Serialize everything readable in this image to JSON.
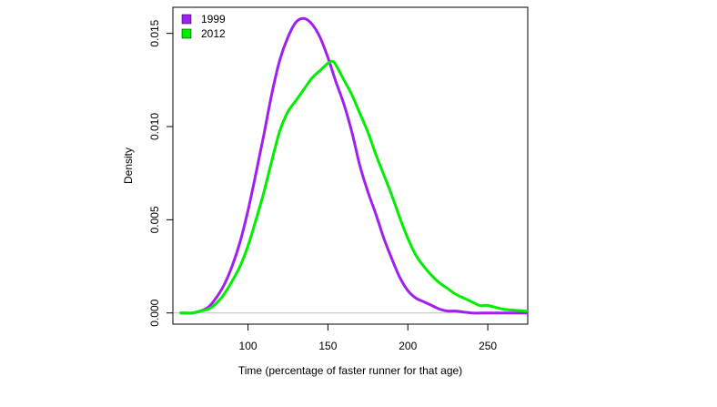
{
  "chart_data": {
    "type": "line",
    "title": "",
    "xlabel": "Time (percentage of faster runner for that age)",
    "ylabel": "Density",
    "xlim": [
      53,
      275
    ],
    "ylim": [
      -0.0006,
      0.0164
    ],
    "x_ticks": [
      100,
      150,
      200,
      250
    ],
    "x_tick_labels": [
      "100",
      "150",
      "200",
      "250"
    ],
    "y_ticks": [
      0,
      0.005,
      0.01,
      0.015
    ],
    "y_tick_labels": [
      "0.000",
      "0.005",
      "0.010",
      "0.015"
    ],
    "grid": false,
    "legend_position": "top-left",
    "baseline": 0,
    "series": [
      {
        "name": "1999",
        "color": "#A020F0",
        "x": [
          58,
          65,
          70,
          75,
          80,
          85,
          90,
          95,
          100,
          105,
          110,
          115,
          120,
          125,
          130,
          135,
          140,
          145,
          150,
          155,
          160,
          165,
          170,
          175,
          180,
          185,
          190,
          195,
          200,
          205,
          210,
          215,
          220,
          225,
          230,
          240,
          250,
          260,
          275
        ],
        "y": [
          0.0,
          0.0,
          0.0001,
          0.0003,
          0.0008,
          0.0015,
          0.0025,
          0.0038,
          0.0055,
          0.0075,
          0.0096,
          0.0118,
          0.0136,
          0.0148,
          0.0156,
          0.0158,
          0.0155,
          0.0148,
          0.0137,
          0.0124,
          0.0112,
          0.0097,
          0.0079,
          0.0065,
          0.0053,
          0.004,
          0.0029,
          0.0019,
          0.0012,
          0.0008,
          0.0006,
          0.0004,
          0.0002,
          0.0001,
          0.0001,
          0.0,
          0.0,
          0.0,
          0.0
        ]
      },
      {
        "name": "2012",
        "color": "#00EE00",
        "x": [
          58,
          65,
          70,
          75,
          80,
          85,
          90,
          95,
          100,
          105,
          110,
          115,
          120,
          125,
          130,
          135,
          140,
          145,
          150,
          153,
          155,
          160,
          165,
          170,
          175,
          180,
          185,
          190,
          195,
          200,
          205,
          210,
          215,
          220,
          225,
          230,
          235,
          240,
          245,
          250,
          260,
          275
        ],
        "y": [
          0.0,
          0.0,
          0.0001,
          0.0002,
          0.0005,
          0.001,
          0.0017,
          0.0025,
          0.0036,
          0.005,
          0.0065,
          0.0082,
          0.0098,
          0.0108,
          0.0114,
          0.012,
          0.0126,
          0.013,
          0.0134,
          0.0135,
          0.0133,
          0.0125,
          0.0117,
          0.0107,
          0.0097,
          0.0085,
          0.0074,
          0.0063,
          0.0051,
          0.004,
          0.0031,
          0.0025,
          0.002,
          0.0016,
          0.0013,
          0.001,
          0.0008,
          0.0006,
          0.0004,
          0.0004,
          0.0002,
          0.0001
        ]
      }
    ]
  }
}
